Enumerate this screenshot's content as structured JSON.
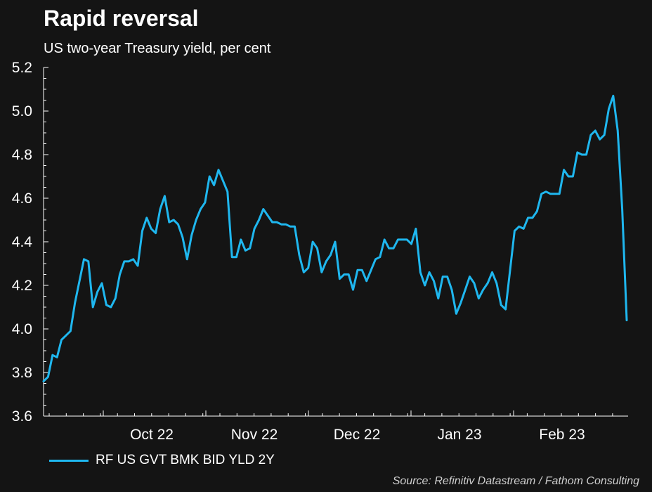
{
  "chart_data": {
    "type": "line",
    "title": "Rapid reversal",
    "subtitle": "US two-year Treasury yield, per cent",
    "source": "Source: Refinitiv Datastream / Fathom Consulting",
    "ylim": [
      3.6,
      5.2
    ],
    "yticks": [
      "3.6",
      "3.8",
      "4.0",
      "4.2",
      "4.4",
      "4.6",
      "4.8",
      "5.0",
      "5.2"
    ],
    "xticks": [
      "Oct 22",
      "Nov 22",
      "Dec 22",
      "Jan 23",
      "Feb 23"
    ],
    "colors": {
      "series": "#1fb7ef",
      "background": "#141414",
      "text": "#ffffff"
    },
    "series": [
      {
        "name": "RF US GVT BMK BID YLD 2Y",
        "values": [
          3.76,
          3.78,
          3.88,
          3.87,
          3.95,
          3.97,
          3.99,
          4.12,
          4.22,
          4.32,
          4.31,
          4.1,
          4.17,
          4.21,
          4.11,
          4.1,
          4.14,
          4.25,
          4.31,
          4.31,
          4.32,
          4.29,
          4.45,
          4.51,
          4.46,
          4.44,
          4.55,
          4.61,
          4.49,
          4.5,
          4.48,
          4.42,
          4.32,
          4.43,
          4.5,
          4.55,
          4.58,
          4.7,
          4.66,
          4.73,
          4.68,
          4.63,
          4.33,
          4.33,
          4.41,
          4.36,
          4.37,
          4.46,
          4.5,
          4.55,
          4.52,
          4.49,
          4.49,
          4.48,
          4.48,
          4.47,
          4.47,
          4.34,
          4.26,
          4.28,
          4.4,
          4.37,
          4.26,
          4.31,
          4.34,
          4.4,
          4.23,
          4.25,
          4.25,
          4.18,
          4.27,
          4.27,
          4.22,
          4.27,
          4.32,
          4.33,
          4.41,
          4.37,
          4.37,
          4.41,
          4.41,
          4.41,
          4.39,
          4.46,
          4.26,
          4.2,
          4.26,
          4.22,
          4.14,
          4.24,
          4.24,
          4.18,
          4.07,
          4.12,
          4.18,
          4.24,
          4.21,
          4.14,
          4.18,
          4.21,
          4.26,
          4.21,
          4.11,
          4.09,
          4.27,
          4.45,
          4.47,
          4.46,
          4.51,
          4.51,
          4.54,
          4.62,
          4.63,
          4.62,
          4.62,
          4.62,
          4.73,
          4.7,
          4.7,
          4.81,
          4.8,
          4.8,
          4.89,
          4.91,
          4.87,
          4.89,
          5.01,
          5.07,
          4.91,
          4.55,
          4.04
        ]
      }
    ]
  }
}
